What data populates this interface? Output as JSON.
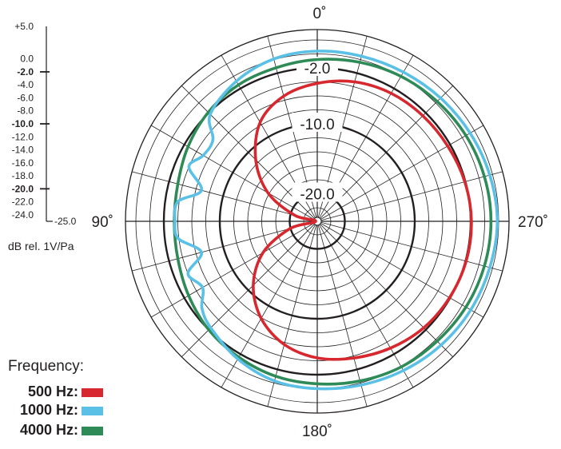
{
  "chart_data": {
    "type": "polar",
    "angle_labels": [
      {
        "angle": 0,
        "text": "0˚"
      },
      {
        "angle": 90,
        "text": "90˚"
      },
      {
        "angle": 180,
        "text": "180˚"
      },
      {
        "angle": 270,
        "text": "270˚"
      }
    ],
    "angle_direction": "counterclockwise",
    "radial_range_db": [
      -25,
      5
    ],
    "ring_labels": [
      "-2.0",
      "-10.0",
      "-20.0"
    ],
    "db_scale_ticks": [
      {
        "value": 5,
        "text": "+5.0",
        "bold": false
      },
      {
        "value": 0,
        "text": "0.0",
        "bold": false
      },
      {
        "value": -2,
        "text": "-2.0",
        "bold": true
      },
      {
        "value": -4,
        "text": "-4.0",
        "bold": false
      },
      {
        "value": -6,
        "text": "-6.0",
        "bold": false
      },
      {
        "value": -8,
        "text": "-8.0",
        "bold": false
      },
      {
        "value": -10,
        "text": "-10.0",
        "bold": true
      },
      {
        "value": -12,
        "text": "-12.0",
        "bold": false
      },
      {
        "value": -14,
        "text": "-14.0",
        "bold": false
      },
      {
        "value": -16,
        "text": "-16.0",
        "bold": false
      },
      {
        "value": -18,
        "text": "-18.0",
        "bold": false
      },
      {
        "value": -20,
        "text": "-20.0",
        "bold": true
      },
      {
        "value": -22,
        "text": "-22.0",
        "bold": false
      },
      {
        "value": -24,
        "text": "-24.0",
        "bold": false
      },
      {
        "value": -25,
        "text": "-25.0",
        "bold": false
      }
    ],
    "unit_label": "dB rel. 1V/Pa",
    "legend_title": "Frequency:",
    "series": [
      {
        "name": "500 Hz:",
        "color": "#d7282f",
        "angles": [
          0,
          15,
          30,
          45,
          60,
          75,
          90,
          105,
          120,
          135,
          150,
          165,
          180,
          195,
          210,
          225,
          240,
          255,
          270,
          285,
          300,
          315,
          330,
          345
        ],
        "db": [
          -4.2,
          -5.4,
          -7.6,
          -11.5,
          -15.8,
          -20.6,
          -23.8,
          -19.9,
          -15.0,
          -11.0,
          -7.9,
          -5.7,
          -4.4,
          -3.7,
          -3.0,
          -2.4,
          -2.1,
          -1.9,
          -1.9,
          -2.1,
          -2.4,
          -2.6,
          -2.8,
          -3.3
        ]
      },
      {
        "name": "1000 Hz:",
        "color": "#5bc0e5",
        "angles": [
          0,
          15,
          30,
          45,
          52,
          60,
          67,
          75,
          82,
          90,
          97,
          105,
          112,
          120,
          127,
          135,
          150,
          165,
          180,
          195,
          210,
          225,
          240,
          255,
          270,
          285,
          300,
          315,
          330,
          345
        ],
        "db": [
          0.4,
          0.1,
          -0.8,
          -2.3,
          -5.0,
          -5.1,
          -4.0,
          -6.8,
          -3.8,
          -3.6,
          -3.9,
          -6.8,
          -4.0,
          -5.0,
          -3.3,
          -2.4,
          -1.2,
          -0.3,
          0.0,
          0.3,
          0.7,
          1.1,
          1.4,
          1.6,
          1.8,
          1.6,
          1.3,
          1.0,
          0.7,
          0.5
        ]
      },
      {
        "name": "4000 Hz:",
        "color": "#2e8b57",
        "angles": [
          0,
          15,
          30,
          45,
          60,
          75,
          90,
          105,
          120,
          135,
          150,
          165,
          180,
          195,
          210,
          225,
          240,
          255,
          270,
          285,
          300,
          315,
          330,
          345
        ],
        "db": [
          -0.8,
          -1.2,
          -1.4,
          -1.9,
          -2.6,
          -3.3,
          -3.5,
          -3.3,
          -2.7,
          -2.0,
          -1.5,
          -1.0,
          -0.7,
          -0.3,
          0.1,
          0.3,
          0.6,
          0.8,
          0.9,
          0.8,
          0.6,
          0.3,
          0.0,
          -0.4
        ]
      }
    ]
  }
}
